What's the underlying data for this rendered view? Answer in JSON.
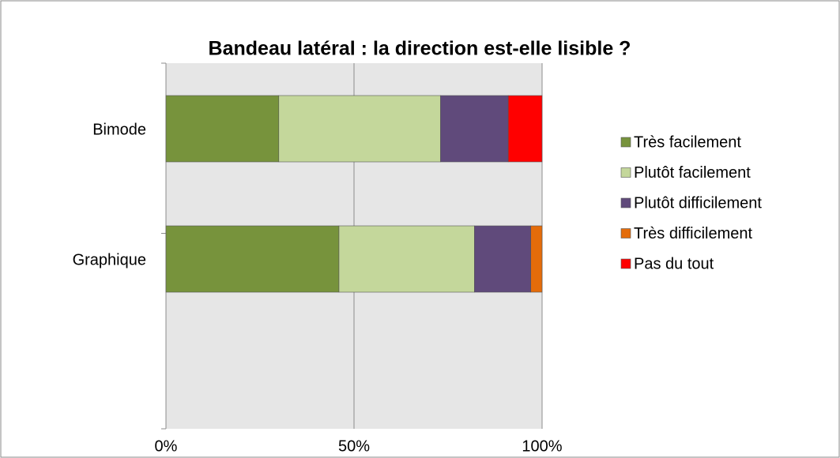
{
  "chart_data": {
    "type": "stacked_bar_horizontal",
    "title": "Bandeau latéral : la direction est-elle lisible ?",
    "categories": [
      "Bimode",
      "Graphique"
    ],
    "series": [
      {
        "name": "Très facilement",
        "color": "#77933c",
        "values": [
          30,
          46
        ]
      },
      {
        "name": "Plutôt facilement",
        "color": "#c4d79b",
        "values": [
          43,
          36
        ]
      },
      {
        "name": "Plutôt difficilement",
        "color": "#604a7b",
        "values": [
          18,
          15
        ]
      },
      {
        "name": "Très difficilement",
        "color": "#e46c0a",
        "values": [
          0,
          3
        ]
      },
      {
        "name": "Pas du tout",
        "color": "#ff0000",
        "values": [
          9,
          0
        ]
      }
    ],
    "xlim": [
      0,
      100
    ],
    "xticks": [
      {
        "value": 0,
        "label": "0%"
      },
      {
        "value": 50,
        "label": "50%"
      },
      {
        "value": 100,
        "label": "100%"
      }
    ],
    "grid": true,
    "legend": "right"
  }
}
